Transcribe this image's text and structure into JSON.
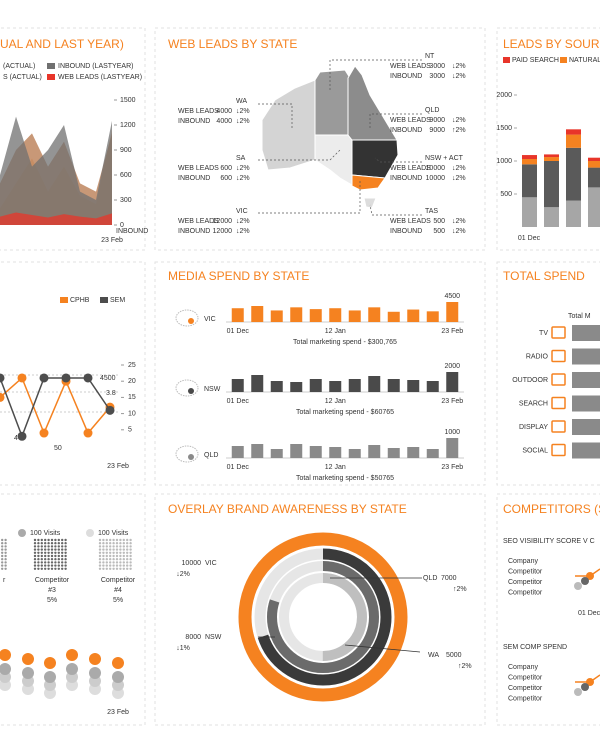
{
  "chart_data": [
    {
      "type": "area",
      "title": "UAL AND LAST YEAR)",
      "series": [
        {
          "name": "(ACTUAL)",
          "color": "#f9c89b",
          "values": [
            200,
            500,
            800,
            400,
            700,
            350,
            250,
            1150
          ]
        },
        {
          "name": "S (ACTUAL)",
          "color": "#b5754a",
          "values": [
            500,
            900,
            1100,
            700,
            1000,
            500,
            400,
            1100
          ]
        },
        {
          "name": "INBOUND (LASTYEAR)",
          "color": "#707070",
          "values": [
            600,
            1300,
            700,
            900,
            1200,
            400,
            300,
            1250
          ]
        },
        {
          "name": "WEB LEADS (LASTYEAR)",
          "color": "#e8352a",
          "values": [
            100,
            150,
            120,
            90,
            130,
            100,
            80,
            140
          ]
        }
      ],
      "categories": [
        null,
        null,
        null,
        null,
        null,
        null,
        null,
        "23 Feb"
      ],
      "ylim": [
        0,
        1500
      ],
      "yticks": [
        0,
        300,
        600,
        900,
        1200,
        1500
      ],
      "y_label": "INBOUND"
    },
    {
      "type": "map",
      "title": "WEB LEADS BY STATE",
      "series_labels": [
        "WEB LEADS",
        "INBOUND"
      ],
      "states": [
        {
          "name": "WA",
          "values": [
            4000,
            4000
          ],
          "changes": [
            "↓2%",
            "↓2%"
          ]
        },
        {
          "name": "SA",
          "values": [
            600,
            600
          ],
          "changes": [
            "↓2%",
            "↓2%"
          ]
        },
        {
          "name": "VIC",
          "values": [
            12000,
            12000
          ],
          "changes": [
            "↓2%",
            "↓2%"
          ]
        },
        {
          "name": "NT",
          "values": [
            3000,
            3000
          ],
          "changes": [
            "↓2%",
            "↓2%"
          ]
        },
        {
          "name": "QLD",
          "values": [
            9000,
            9000
          ],
          "changes": [
            "↓2%",
            "↑2%"
          ]
        },
        {
          "name": "NSW + ACT",
          "values": [
            10000,
            10000
          ],
          "changes": [
            "↓2%",
            "↓2%"
          ]
        },
        {
          "name": "TAS",
          "values": [
            500,
            500
          ],
          "changes": [
            "↓2%",
            "↓2%"
          ]
        }
      ]
    },
    {
      "type": "bar",
      "stacked": true,
      "title": "LEADS BY SOURCE",
      "series": [
        {
          "name": "PAID SEARCH",
          "color": "#e8352a",
          "values": [
            60,
            40,
            80,
            50
          ]
        },
        {
          "name": "NATURAL S",
          "color": "#f58220",
          "values": [
            80,
            60,
            200,
            100
          ]
        },
        {
          "color": "#5a5a5a",
          "values": [
            500,
            700,
            800,
            300
          ]
        },
        {
          "color": "#a6a6a6",
          "values": [
            450,
            300,
            400,
            600
          ]
        }
      ],
      "categories": [
        "01 Dec",
        null,
        null,
        null
      ],
      "ylim": [
        0,
        2000
      ],
      "yticks": [
        500,
        1000,
        1500,
        2000
      ]
    },
    {
      "type": "line",
      "series": [
        {
          "name": "CPHB",
          "color": "#f58220",
          "values": [
            15,
            21,
            4,
            20,
            4,
            12
          ]
        },
        {
          "name": "SEM",
          "color": "#4d4d4d",
          "values": [
            21,
            3,
            21,
            21,
            21,
            11
          ]
        }
      ],
      "categories": [
        null,
        null,
        null,
        null,
        null,
        "23 Feb"
      ],
      "ylim": [
        0,
        25
      ],
      "yticks": [
        5,
        10,
        15,
        20,
        25
      ],
      "annotations": [
        "4500",
        "3.8",
        "50",
        "4"
      ]
    },
    {
      "type": "bar",
      "title": "MEDIA SPEND BY STATE",
      "categories": [
        "01 Dec",
        null,
        null,
        null,
        null,
        "12 Jan",
        null,
        null,
        null,
        null,
        null,
        "23 Feb"
      ],
      "panels": [
        {
          "state": "VIC",
          "color": "#f58220",
          "values": [
            3100,
            3600,
            2600,
            3300,
            2900,
            3100,
            2600,
            3300,
            2300,
            2800,
            2400,
            4500
          ],
          "note": "Total marketing spend - $300,765"
        },
        {
          "state": "NSW",
          "color": "#4a4a4a",
          "values": [
            1300,
            1700,
            1100,
            1000,
            1300,
            1100,
            1300,
            1600,
            1300,
            1200,
            1100,
            2000
          ],
          "note": "Total marketing spend - $60765"
        },
        {
          "state": "QLD",
          "color": "#8a8a8a",
          "values": [
            600,
            700,
            450,
            700,
            600,
            550,
            450,
            650,
            500,
            550,
            450,
            1000
          ],
          "note": "Total marketing spend - $50765"
        }
      ]
    },
    {
      "type": "hbar",
      "title": "TOTAL SPEND",
      "subtitle": "Total M",
      "categories": [
        "TV",
        "RADIO",
        "OUTDOOR",
        "SEARCH",
        "DISPLAY",
        "SOCIAL"
      ]
    },
    {
      "type": "pictogram",
      "headers": [
        "100 Visits",
        "100 Visits"
      ],
      "items": [
        {
          "name": "r"
        },
        {
          "name": "Competitor",
          "rank": "#3",
          "share": "5%"
        },
        {
          "name": "Competitor",
          "rank": "#4",
          "share": "5%"
        }
      ],
      "x_label": "23 Feb"
    },
    {
      "type": "ring",
      "title": "OVERLAY BRAND AWARENESS BY STATE",
      "series": [
        {
          "name": "VIC",
          "value": 10000,
          "change": "↓2%",
          "color": "#f58220"
        },
        {
          "name": "QLD",
          "value": 7000,
          "change": "↑2%",
          "color": "#3a3a3a"
        },
        {
          "name": "NSW",
          "value": 8000,
          "change": "↓1%",
          "color": "#6b6b6b"
        },
        {
          "name": "WA",
          "value": 5000,
          "change": "↑2%",
          "color": "#bfbfbf"
        }
      ]
    },
    {
      "type": "line",
      "title": "COMPETITORS (SE",
      "subcharts": [
        {
          "title": "SEO VISIBILITY SCORE V C",
          "series_names": [
            "Company",
            "Competitor",
            "Competitor",
            "Competitor"
          ],
          "categories": [
            "01 Dec"
          ]
        },
        {
          "title": "SEM COMP SPEND",
          "series_names": [
            "Company",
            "Competitor",
            "Competitor",
            "Competitor"
          ]
        }
      ]
    }
  ]
}
